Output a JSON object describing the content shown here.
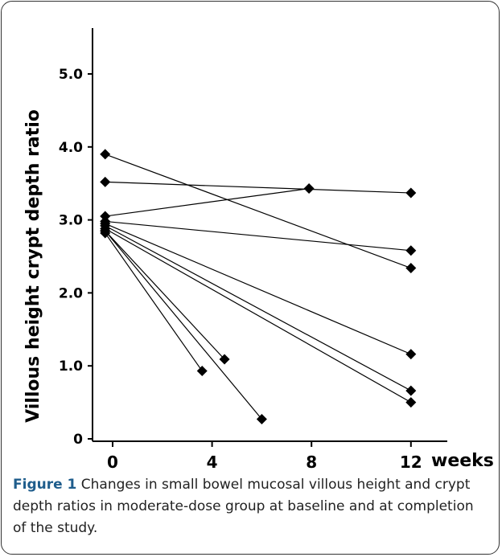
{
  "caption": {
    "label": "Figure 1",
    "text": "Changes in small bowel mucosal villous height and crypt depth ratios in moderate-dose group at baseline and at completion of the study."
  },
  "chart_data": {
    "type": "line",
    "ylabel": "Villous height crypt depth ratio",
    "x_unit_label": "weeks",
    "xlim": [
      -0.5,
      12
    ],
    "ylim": [
      0,
      5.3
    ],
    "x_ticks": [
      {
        "value": 0,
        "label": "0"
      },
      {
        "value": 4,
        "label": "4"
      },
      {
        "value": 8,
        "label": "8"
      },
      {
        "value": 12,
        "label": "12"
      }
    ],
    "y_ticks": [
      {
        "value": 0,
        "label": "0"
      },
      {
        "value": 1,
        "label": "1.0"
      },
      {
        "value": 2,
        "label": "2.0"
      },
      {
        "value": 3,
        "label": "3.0"
      },
      {
        "value": 4,
        "label": "4.0"
      },
      {
        "value": 5,
        "label": "5.0"
      }
    ],
    "series": [
      {
        "points": [
          [
            -0.3,
            3.9
          ],
          [
            12,
            2.34
          ]
        ]
      },
      {
        "points": [
          [
            -0.3,
            3.52
          ],
          [
            12,
            3.37
          ]
        ]
      },
      {
        "points": [
          [
            -0.3,
            3.05
          ],
          [
            7.9,
            3.43
          ]
        ]
      },
      {
        "points": [
          [
            -0.3,
            2.98
          ],
          [
            12,
            2.58
          ]
        ]
      },
      {
        "points": [
          [
            -0.3,
            2.95
          ],
          [
            12,
            1.16
          ]
        ]
      },
      {
        "points": [
          [
            -0.3,
            2.92
          ],
          [
            12,
            0.66
          ]
        ]
      },
      {
        "points": [
          [
            -0.3,
            2.88
          ],
          [
            12,
            0.5
          ]
        ]
      },
      {
        "points": [
          [
            -0.3,
            2.85
          ],
          [
            4.5,
            1.09
          ]
        ]
      },
      {
        "points": [
          [
            -0.3,
            2.82
          ],
          [
            3.6,
            0.93
          ]
        ]
      },
      {
        "points": [
          [
            -0.3,
            2.85
          ],
          [
            6.0,
            0.27
          ]
        ]
      }
    ],
    "marker": "diamond",
    "colors": {
      "line": "#000000",
      "marker": "#000000",
      "frame": "#333333",
      "caption_label": "#1f5d8c"
    }
  }
}
